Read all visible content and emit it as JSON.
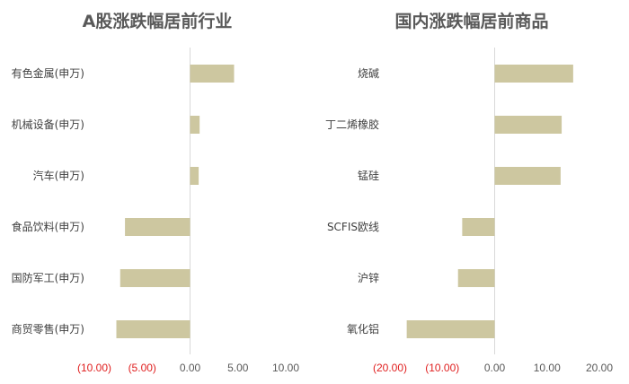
{
  "colors": {
    "bar": "#cdc7a0",
    "axis": "#d9d9d9",
    "negative_tick": "#e02020",
    "text": "#595959"
  },
  "chart_data": [
    {
      "type": "bar",
      "orientation": "horizontal",
      "title": "A股涨跌幅居前行业",
      "categories": [
        "有色金属(申万)",
        "机械设备(申万)",
        "汽车(申万)",
        "食品饮料(申万)",
        "国防军工(申万)",
        "商贸零售(申万)"
      ],
      "values": [
        4.6,
        1.0,
        0.9,
        -6.8,
        -7.3,
        -7.7
      ],
      "xlim": [
        -10,
        10
      ],
      "xticks": [
        -10,
        -5,
        0,
        5,
        10
      ],
      "xtick_labels": [
        "(10.00)",
        "(5.00)",
        "0.00",
        "5.00",
        "10.00"
      ],
      "grid": false
    },
    {
      "type": "bar",
      "orientation": "horizontal",
      "title": "国内涨跌幅居前商品",
      "categories": [
        "烧碱",
        "丁二烯橡胶",
        "锰硅",
        "SCFIS欧线",
        "沪锌",
        "氧化铝"
      ],
      "values": [
        15.0,
        12.8,
        12.6,
        -6.2,
        -7.0,
        -16.8
      ],
      "xlim": [
        -20,
        20
      ],
      "xticks": [
        -20,
        -10,
        0,
        10,
        20
      ],
      "xtick_labels": [
        "(20.00)",
        "(10.00)",
        "0.00",
        "10.00",
        "20.00"
      ],
      "grid": false
    }
  ]
}
